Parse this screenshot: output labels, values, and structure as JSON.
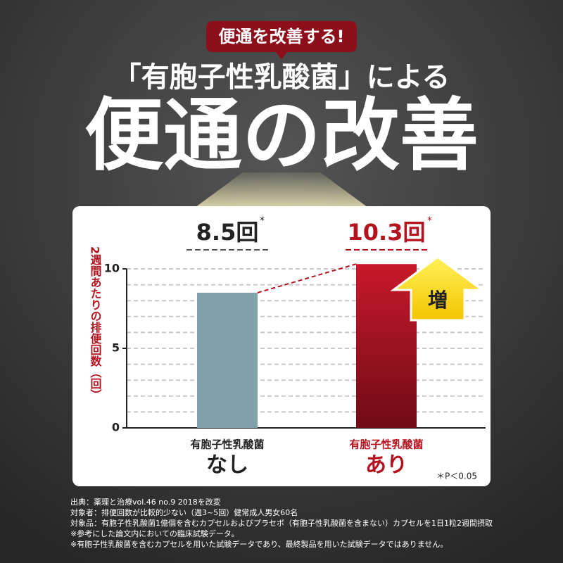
{
  "badge": "便通を改善する!",
  "headline": "「有胞子性乳酸菌」による",
  "big_title": "便通の改善",
  "chart_data": {
    "type": "bar",
    "y_label": "2週間あたりの排便回数（回）",
    "categories": [
      "なし",
      "あり"
    ],
    "category_sublabels": [
      "有胞子性乳酸菌",
      "有胞子性乳酸菌"
    ],
    "values": [
      8.5,
      10.3
    ],
    "value_labels": [
      "8.5回",
      "10.3回"
    ],
    "value_label_marker": "*",
    "colors": [
      "#7fa1a9",
      "#b5121f"
    ],
    "ylim": [
      0,
      10
    ],
    "yticks": [
      0,
      5,
      10
    ],
    "grid_values": [
      1,
      2,
      3,
      4,
      5,
      6,
      7,
      8,
      9,
      10
    ],
    "grid": true,
    "arrow_label": "増",
    "note": "＊P＜0.05"
  },
  "footer": [
    "出典：薬理と治療vol.46 no.9 2018を改変",
    "対象者：排便回数が比較的少ない（週3~5回）健常成人男女60名",
    "対象品：有胞子性乳酸菌1億個を含むカプセルおよびプラセボ（有胞子性乳酸菌を含まない）カプセルを1日1粒2週間摂取",
    "※参考にした論文内においての臨床試験データ。",
    "※有胞子性乳酸菌を含むカプセルを用いた試験データであり、最終製品を用いた試験データではありません。"
  ]
}
